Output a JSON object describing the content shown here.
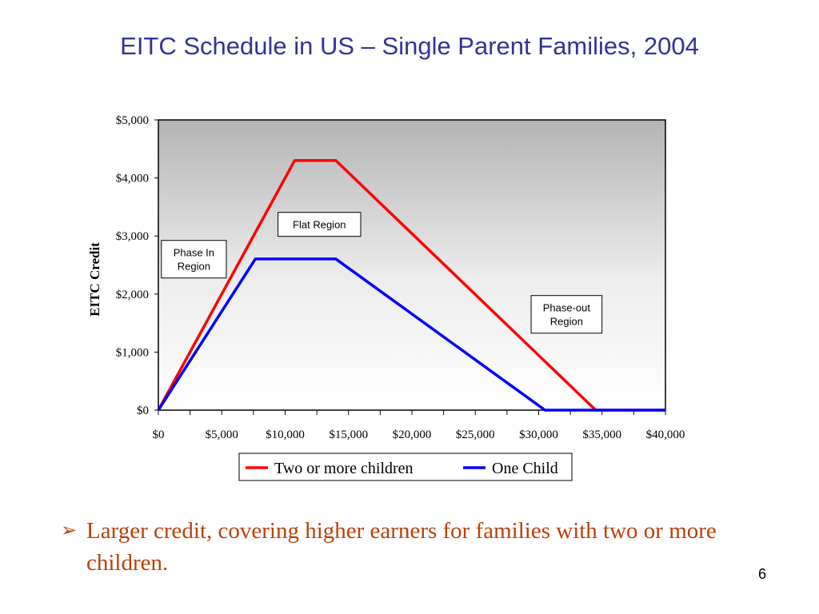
{
  "slide": {
    "title": "EITC Schedule in US – Single Parent Families, 2004",
    "bullet_marker": "➢",
    "bullet_text": "Larger credit, covering higher earners for families with two or more children.",
    "page_number": "6"
  },
  "chart_data": {
    "type": "line",
    "title": "",
    "xlabel": "",
    "ylabel": "EITC Credit",
    "x_ticks": [
      "$0",
      "$5,000",
      "$10,000",
      "$15,000",
      "$20,000",
      "$25,000",
      "$30,000",
      "$35,000",
      "$40,000"
    ],
    "x_tick_values": [
      0,
      5000,
      10000,
      15000,
      20000,
      25000,
      30000,
      35000,
      40000
    ],
    "y_ticks": [
      "$0",
      "$1,000",
      "$2,000",
      "$3,000",
      "$4,000",
      "$5,000"
    ],
    "y_tick_values": [
      0,
      1000,
      2000,
      3000,
      4000,
      5000
    ],
    "xlim": [
      0,
      40000
    ],
    "ylim": [
      0,
      5000
    ],
    "grid": false,
    "legend_position": "bottom",
    "series": [
      {
        "name": "Two or more children",
        "color": "#ff0000",
        "points": [
          [
            0,
            0
          ],
          [
            10750,
            4300
          ],
          [
            14000,
            4300
          ],
          [
            34500,
            0
          ],
          [
            40000,
            0
          ]
        ]
      },
      {
        "name": "One Child",
        "color": "#0000ff",
        "points": [
          [
            0,
            0
          ],
          [
            7650,
            2604
          ],
          [
            14000,
            2604
          ],
          [
            30500,
            0
          ],
          [
            40000,
            0
          ]
        ]
      }
    ],
    "annotations": [
      {
        "lines": [
          "Phase In",
          "Region"
        ],
        "x": 2800,
        "y": 2600
      },
      {
        "lines": [
          "Flat Region"
        ],
        "x": 12700,
        "y": 3200
      },
      {
        "lines": [
          "Phase-out",
          "Region"
        ],
        "x": 32200,
        "y": 1650
      }
    ]
  }
}
